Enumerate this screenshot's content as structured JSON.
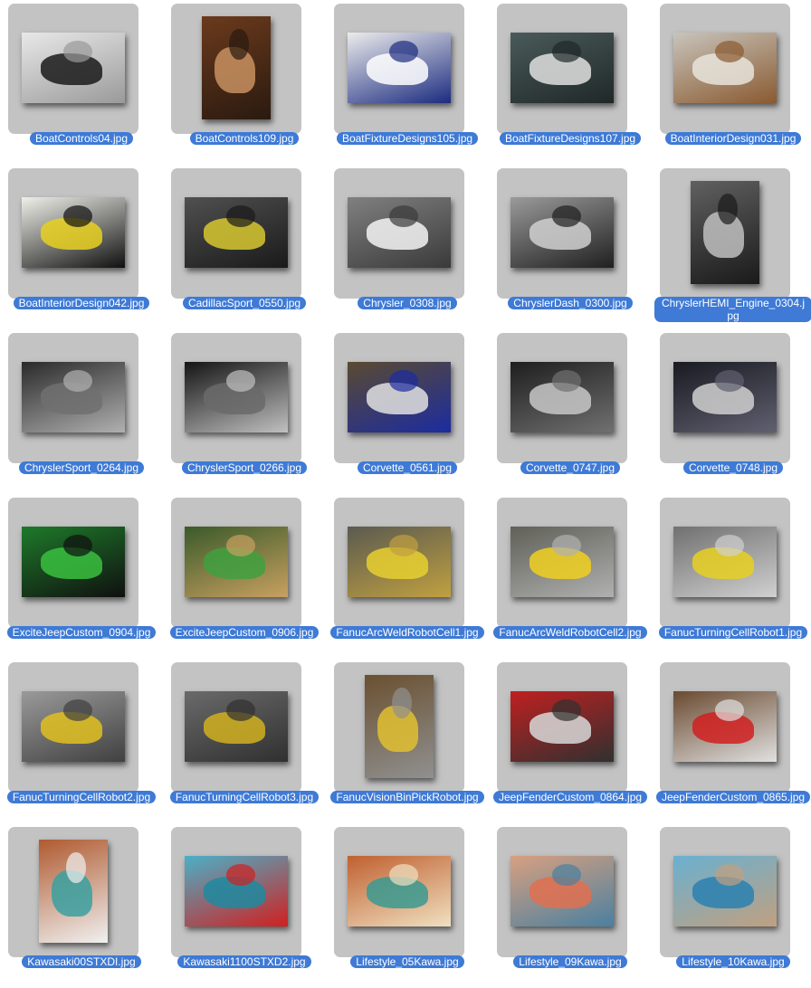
{
  "colors": {
    "background": "#ffffff",
    "tile": "#c3c3c3",
    "label_highlight": "#3e7ad6",
    "label_text": "#ffffff"
  },
  "items": [
    {
      "name": "BoatControls04.jpg",
      "orient": "landscape",
      "c1": "#e8e8e8",
      "c2": "#1a1a1a",
      "c3": "#9a9a9a"
    },
    {
      "name": "BoatControls109.jpg",
      "orient": "portrait",
      "c1": "#6b3a1c",
      "c2": "#c89060",
      "c3": "#2a1a10"
    },
    {
      "name": "BoatFixtureDesigns105.jpg",
      "orient": "landscape",
      "c1": "#ececec",
      "c2": "#ffffff",
      "c3": "#1c2c80"
    },
    {
      "name": "BoatFixtureDesigns107.jpg",
      "orient": "landscape",
      "c1": "#4a5a5a",
      "c2": "#e0e0e0",
      "c3": "#202828"
    },
    {
      "name": "BoatInteriorDesign031.jpg",
      "orient": "landscape",
      "c1": "#c8c4bc",
      "c2": "#e8e4dc",
      "c3": "#8a5a30"
    },
    {
      "name": "BoatInteriorDesign042.jpg",
      "orient": "landscape",
      "c1": "#f0f0ea",
      "c2": "#e8d020",
      "c3": "#101010"
    },
    {
      "name": "CadillacSport_0550.jpg",
      "orient": "landscape",
      "c1": "#505050",
      "c2": "#d8c830",
      "c3": "#1a1a1a"
    },
    {
      "name": "Chrysler_0308.jpg",
      "orient": "landscape",
      "c1": "#808080",
      "c2": "#f4f4f4",
      "c3": "#3a3a3a"
    },
    {
      "name": "ChryslerDash_0300.jpg",
      "orient": "landscape",
      "c1": "#9a9a9a",
      "c2": "#d0d0d0",
      "c3": "#202020"
    },
    {
      "name": "ChryslerHEMI_Engine_0304.jpg",
      "orient": "portrait",
      "c1": "#606060",
      "c2": "#c0c0c0",
      "c3": "#1a1a1a"
    },
    {
      "name": "ChryslerSport_0264.jpg",
      "orient": "landscape",
      "c1": "#2a2a2a",
      "c2": "#707070",
      "c3": "#b0b0b0"
    },
    {
      "name": "ChryslerSport_0266.jpg",
      "orient": "landscape",
      "c1": "#141414",
      "c2": "#6a6a6a",
      "c3": "#c0c0c0"
    },
    {
      "name": "Corvette_0561.jpg",
      "orient": "landscape",
      "c1": "#5a4a30",
      "c2": "#e0e0e0",
      "c3": "#1c2ca0"
    },
    {
      "name": "Corvette_0747.jpg",
      "orient": "landscape",
      "c1": "#1e1e1e",
      "c2": "#c8c8c8",
      "c3": "#707070"
    },
    {
      "name": "Corvette_0748.jpg",
      "orient": "landscape",
      "c1": "#1a1a22",
      "c2": "#d0d0d0",
      "c3": "#606070"
    },
    {
      "name": "ExciteJeepCustom_0904.jpg",
      "orient": "landscape",
      "c1": "#1e7a2a",
      "c2": "#3ac040",
      "c3": "#101010"
    },
    {
      "name": "ExciteJeepCustom_0906.jpg",
      "orient": "landscape",
      "c1": "#3a5a2a",
      "c2": "#40a040",
      "c3": "#c8a060"
    },
    {
      "name": "FanucArcWeldRobotCell1.jpg",
      "orient": "landscape",
      "c1": "#5a5a50",
      "c2": "#e8d030",
      "c3": "#c0a040"
    },
    {
      "name": "FanucArcWeldRobotCell2.jpg",
      "orient": "landscape",
      "c1": "#606058",
      "c2": "#f0d020",
      "c3": "#b0b0b0"
    },
    {
      "name": "FanucTurningCellRobot1.jpg",
      "orient": "landscape",
      "c1": "#707070",
      "c2": "#e8d020",
      "c3": "#d0d0d0"
    },
    {
      "name": "FanucTurningCellRobot2.jpg",
      "orient": "landscape",
      "c1": "#9a9a9a",
      "c2": "#e0c020",
      "c3": "#404040"
    },
    {
      "name": "FanucTurningCellRobot3.jpg",
      "orient": "landscape",
      "c1": "#6a6a6a",
      "c2": "#d0b020",
      "c3": "#303030"
    },
    {
      "name": "FanucVisionBinPickRobot.jpg",
      "orient": "portrait",
      "c1": "#6a5030",
      "c2": "#e0c030",
      "c3": "#909090"
    },
    {
      "name": "JeepFenderCustom_0864.jpg",
      "orient": "landscape",
      "c1": "#c02020",
      "c2": "#d8d8d8",
      "c3": "#303030"
    },
    {
      "name": "JeepFenderCustom_0865.jpg",
      "orient": "landscape",
      "c1": "#6a4a30",
      "c2": "#d02020",
      "c3": "#e0e0e0"
    },
    {
      "name": "Kawasaki00STXDI.jpg",
      "orient": "portrait",
      "c1": "#b05a30",
      "c2": "#3aa0a0",
      "c3": "#f0f0f0"
    },
    {
      "name": "Kawasaki1100STXD2.jpg",
      "orient": "landscape",
      "c1": "#4ab0c8",
      "c2": "#1e8aa0",
      "c3": "#d02020"
    },
    {
      "name": "Lifestyle_05Kawa.jpg",
      "orient": "landscape",
      "c1": "#c06030",
      "c2": "#3a9a90",
      "c3": "#f0e0c0"
    },
    {
      "name": "Lifestyle_09Kawa.jpg",
      "orient": "landscape",
      "c1": "#d8a080",
      "c2": "#e07050",
      "c3": "#4a80a0"
    },
    {
      "name": "Lifestyle_10Kawa.jpg",
      "orient": "landscape",
      "c1": "#6ab0d0",
      "c2": "#2a80b0",
      "c3": "#c0a080"
    }
  ]
}
